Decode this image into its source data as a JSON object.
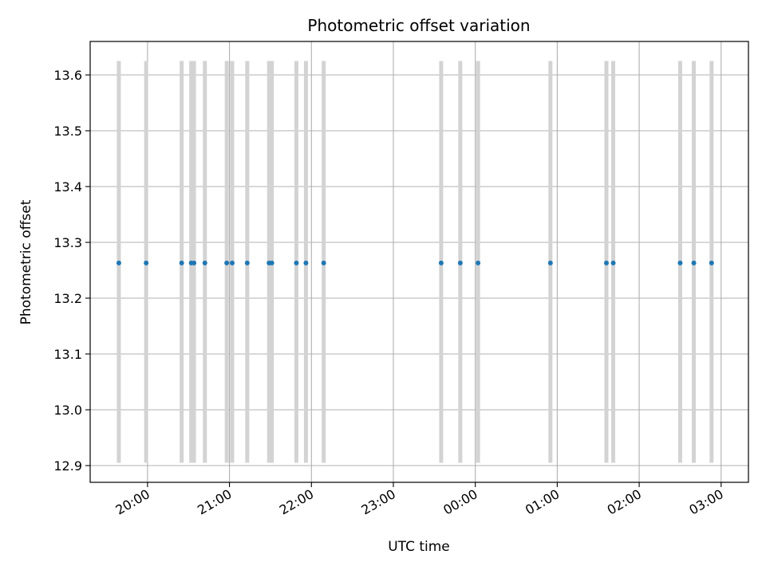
{
  "chart_data": {
    "type": "scatter",
    "title": "Photometric offset variation",
    "xlabel": "UTC time",
    "ylabel": "Photometric offset",
    "x_unit": "UTC time (HH:MM)",
    "xlim": [
      "19:18",
      "03:20"
    ],
    "xlim_next_day_from": "00:00",
    "ylim": [
      12.87,
      13.66
    ],
    "grid": true,
    "x_ticks": [
      "20:00",
      "21:00",
      "22:00",
      "23:00",
      "00:00",
      "01:00",
      "02:00",
      "03:00"
    ],
    "y_ticks": [
      12.9,
      13.0,
      13.1,
      13.2,
      13.3,
      13.4,
      13.5,
      13.6
    ],
    "y_tick_labels": [
      "12.9",
      "13.0",
      "13.1",
      "13.2",
      "13.3",
      "13.4",
      "13.5",
      "13.6"
    ],
    "errorbar_range": [
      12.905,
      13.625
    ],
    "points": [
      {
        "x": "19:39",
        "y": 13.263
      },
      {
        "x": "19:59",
        "y": 13.263
      },
      {
        "x": "20:25",
        "y": 13.263
      },
      {
        "x": "20:32",
        "y": 13.263
      },
      {
        "x": "20:34",
        "y": 13.263
      },
      {
        "x": "20:42",
        "y": 13.263
      },
      {
        "x": "20:58",
        "y": 13.263
      },
      {
        "x": "21:02",
        "y": 13.263
      },
      {
        "x": "21:13",
        "y": 13.263
      },
      {
        "x": "21:29",
        "y": 13.263
      },
      {
        "x": "21:31",
        "y": 13.263
      },
      {
        "x": "21:49",
        "y": 13.263
      },
      {
        "x": "21:56",
        "y": 13.263
      },
      {
        "x": "22:09",
        "y": 13.263
      },
      {
        "x": "23:35",
        "y": 13.263
      },
      {
        "x": "23:49",
        "y": 13.263
      },
      {
        "x": "00:02",
        "y": 13.263
      },
      {
        "x": "00:55",
        "y": 13.263
      },
      {
        "x": "01:36",
        "y": 13.263
      },
      {
        "x": "01:41",
        "y": 13.263
      },
      {
        "x": "02:30",
        "y": 13.263
      },
      {
        "x": "02:40",
        "y": 13.263
      },
      {
        "x": "02:53",
        "y": 13.263
      }
    ],
    "colors": {
      "point": "#1f77b4",
      "errorbar": "#d3d3d3",
      "grid": "#b0b0b0",
      "axis": "#000000"
    }
  }
}
